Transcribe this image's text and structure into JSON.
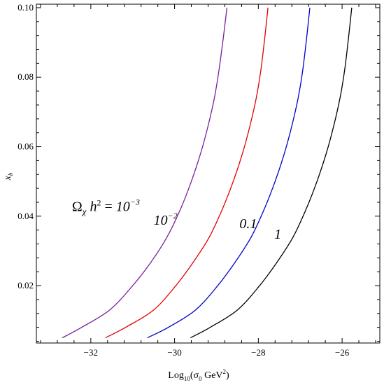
{
  "chart_data": {
    "type": "line",
    "title": "",
    "xlabel": {
      "pre": "Log",
      "sub1": "10",
      "mid": "(σ",
      "sub2": "0",
      "post": " GeV",
      "sup": "2",
      "end": ")"
    },
    "ylabel": {
      "main": "x",
      "sub": "b"
    },
    "xlim": [
      -33.3,
      -25.1
    ],
    "ylim": [
      0.0035,
      0.101
    ],
    "x_ticks": [
      -32,
      -30,
      -28,
      -26
    ],
    "y_ticks": [
      0.02,
      0.04,
      0.06,
      0.08,
      0.1
    ],
    "x_tick_labels": [
      "−32",
      "−30",
      "−28",
      "−26"
    ],
    "y_tick_labels": [
      "0.02",
      "0.04",
      "0.06",
      "0.08",
      "0.10"
    ],
    "grid": false,
    "series": [
      {
        "name": "10⁻³",
        "color": "#7a1fa0",
        "x": [
          -32.68,
          -32.22,
          -31.55,
          -31.0,
          -30.55,
          -30.18,
          -29.86,
          -29.6,
          -29.38,
          -29.2,
          -29.05,
          -28.94,
          -28.84,
          -28.75
        ],
        "y": [
          0.005,
          0.008,
          0.013,
          0.02,
          0.027,
          0.034,
          0.042,
          0.05,
          0.058,
          0.066,
          0.074,
          0.082,
          0.091,
          0.1
        ]
      },
      {
        "name": "10⁻²",
        "color": "#e00000",
        "x": [
          -31.65,
          -31.17,
          -30.5,
          -29.97,
          -29.54,
          -29.17,
          -28.86,
          -28.6,
          -28.38,
          -28.2,
          -28.05,
          -27.94,
          -27.85,
          -27.77
        ],
        "y": [
          0.005,
          0.008,
          0.013,
          0.02,
          0.027,
          0.034,
          0.042,
          0.05,
          0.058,
          0.066,
          0.074,
          0.082,
          0.091,
          0.1
        ]
      },
      {
        "name": "0.1",
        "color": "#0000c8",
        "x": [
          -30.65,
          -30.15,
          -29.5,
          -28.97,
          -28.54,
          -28.17,
          -27.86,
          -27.6,
          -27.38,
          -27.2,
          -27.05,
          -26.94,
          -26.85,
          -26.77
        ],
        "y": [
          0.005,
          0.008,
          0.013,
          0.02,
          0.027,
          0.034,
          0.042,
          0.05,
          0.058,
          0.066,
          0.074,
          0.082,
          0.091,
          0.1
        ]
      },
      {
        "name": "1",
        "color": "#000000",
        "x": [
          -29.62,
          -29.15,
          -28.5,
          -27.97,
          -27.54,
          -27.17,
          -26.86,
          -26.6,
          -26.38,
          -26.2,
          -26.05,
          -25.94,
          -25.85,
          -25.77
        ],
        "y": [
          0.005,
          0.008,
          0.013,
          0.02,
          0.027,
          0.034,
          0.042,
          0.05,
          0.058,
          0.066,
          0.074,
          0.082,
          0.091,
          0.1
        ]
      }
    ],
    "annotations": [
      {
        "text_main": "Ω",
        "text_sub": "χ",
        "text_h": " h",
        "text_sup": "2",
        "text_eq": " = ",
        "text_val": "10",
        "text_exp": "−3",
        "x": -32.45,
        "y": 0.0415
      },
      {
        "text_val": "10",
        "text_exp": "−2",
        "x": -30.5,
        "y": 0.0375
      },
      {
        "text_val": "0.1",
        "x": -28.45,
        "y": 0.0365
      },
      {
        "text_val": "1",
        "x": -27.62,
        "y": 0.0335
      }
    ]
  }
}
